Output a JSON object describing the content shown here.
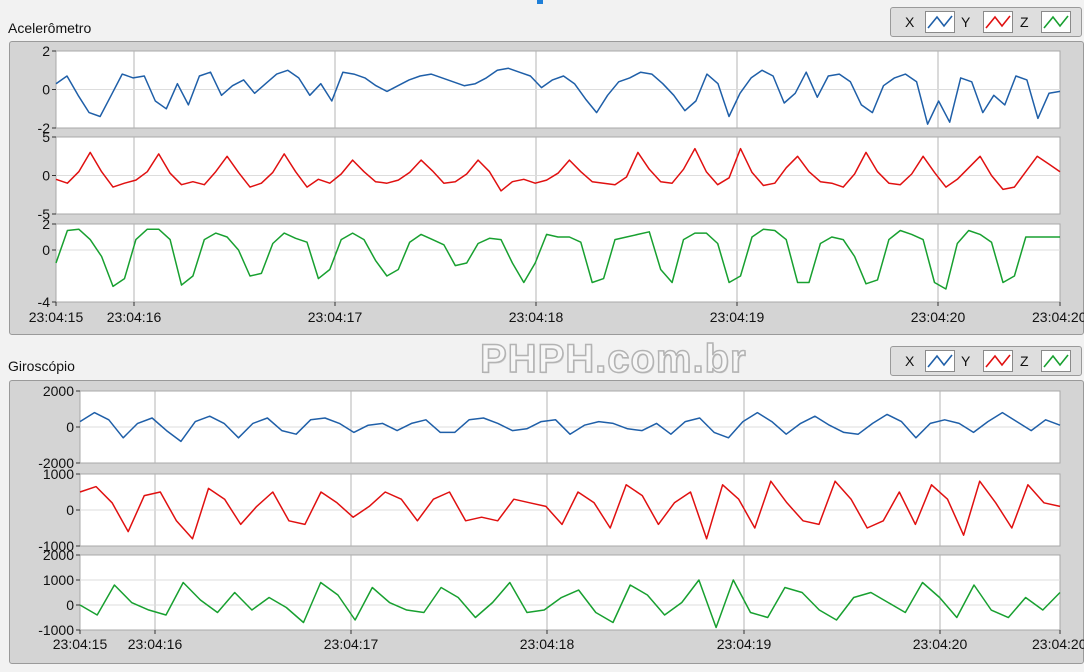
{
  "watermark": "PHPH.com.br",
  "chart_data": [
    {
      "type": "line",
      "title": "Acelerômetro",
      "x_tick_labels": [
        "23:04:15",
        "23:04:16",
        "23:04:17",
        "23:04:18",
        "23:04:19",
        "23:04:20",
        "23:04:20"
      ],
      "grid": true,
      "legend": {
        "placement": "top-right",
        "entries": [
          "X",
          "Y",
          "Z"
        ]
      },
      "series": [
        {
          "name": "X",
          "color": "#1f5fa8",
          "ylim": [
            -2,
            2
          ],
          "y_ticks": [
            "2",
            "0",
            "-2"
          ],
          "values": [
            0.3,
            0.7,
            -0.3,
            -1.2,
            -1.4,
            -0.3,
            0.8,
            0.6,
            0.7,
            -0.6,
            -1.0,
            0.3,
            -0.8,
            0.7,
            0.9,
            -0.3,
            0.2,
            0.5,
            -0.2,
            0.3,
            0.8,
            1.0,
            0.6,
            -0.3,
            0.3,
            -0.6,
            0.9,
            0.8,
            0.6,
            0.2,
            -0.1,
            0.2,
            0.5,
            0.7,
            0.8,
            0.6,
            0.4,
            0.2,
            0.3,
            0.6,
            1.0,
            1.1,
            0.9,
            0.7,
            0.1,
            0.5,
            0.7,
            0.3,
            -0.5,
            -1.2,
            -0.3,
            0.4,
            0.6,
            0.9,
            0.8,
            0.3,
            -0.3,
            -1.1,
            -0.6,
            0.8,
            0.3,
            -1.4,
            -0.2,
            0.6,
            1.0,
            0.7,
            -0.7,
            -0.2,
            0.9,
            -0.4,
            0.7,
            0.8,
            0.4,
            -0.8,
            -1.2,
            0.2,
            0.6,
            0.8,
            0.4,
            -1.8,
            -0.6,
            -1.7,
            0.6,
            0.4,
            -1.2,
            -0.3,
            -0.8,
            0.7,
            0.5,
            -1.5,
            -0.2,
            -0.1
          ]
        },
        {
          "name": "Y",
          "color": "#e01010",
          "ylim": [
            -5,
            5
          ],
          "y_ticks": [
            "5",
            "0",
            "-5"
          ],
          "values": [
            -0.5,
            -1.0,
            0.5,
            3.0,
            0.5,
            -1.5,
            -1.0,
            -0.6,
            0.5,
            2.8,
            0.3,
            -1.2,
            -0.8,
            -1.2,
            0.5,
            2.5,
            0.4,
            -1.5,
            -1.0,
            0.4,
            2.8,
            0.5,
            -1.5,
            -0.5,
            -1.0,
            0.2,
            2.0,
            0.5,
            -0.8,
            -1.0,
            -0.6,
            0.4,
            2.0,
            0.6,
            -1.0,
            -0.8,
            0.2,
            2.0,
            0.5,
            -2.0,
            -0.8,
            -0.5,
            -1.0,
            -0.6,
            0.3,
            2.0,
            0.5,
            -0.8,
            -1.0,
            -1.2,
            -0.2,
            3.0,
            0.8,
            -0.8,
            -1.0,
            0.8,
            3.5,
            0.5,
            -1.2,
            -0.3,
            3.5,
            0.4,
            -1.3,
            -1.0,
            1.0,
            2.5,
            0.5,
            -0.8,
            -1.0,
            -1.5,
            0.2,
            3.0,
            0.5,
            -1.0,
            -1.2,
            0.2,
            2.5,
            0.4,
            -1.5,
            -0.5,
            1.0,
            2.5,
            0.0,
            -1.8,
            -1.5,
            0.5,
            2.5,
            1.5,
            0.5
          ]
        },
        {
          "name": "Z",
          "color": "#18a030",
          "ylim": [
            -4,
            2
          ],
          "y_ticks": [
            "2",
            "0",
            "-4"
          ],
          "values": [
            -1.0,
            1.5,
            1.6,
            0.8,
            -0.5,
            -2.8,
            -2.2,
            0.8,
            1.6,
            1.6,
            0.8,
            -2.7,
            -2.0,
            0.8,
            1.3,
            1.0,
            0.0,
            -2.0,
            -1.8,
            0.5,
            1.3,
            0.9,
            0.6,
            -2.2,
            -1.5,
            0.8,
            1.3,
            0.8,
            -0.8,
            -2.0,
            -1.5,
            0.6,
            1.2,
            0.8,
            0.4,
            -1.2,
            -1.0,
            0.5,
            0.9,
            0.8,
            -1.0,
            -2.5,
            -1.0,
            1.2,
            1.0,
            1.0,
            0.6,
            -2.5,
            -2.2,
            0.8,
            1.0,
            1.2,
            1.4,
            -1.5,
            -2.5,
            0.8,
            1.3,
            1.3,
            0.5,
            -2.5,
            -2.0,
            1.0,
            1.6,
            1.5,
            0.8,
            -2.5,
            -2.5,
            0.5,
            1.0,
            0.8,
            -0.5,
            -2.6,
            -2.3,
            0.8,
            1.5,
            1.2,
            0.8,
            -2.5,
            -3.0,
            0.5,
            1.5,
            1.2,
            0.6,
            -2.5,
            -2.0,
            1.0,
            1.0,
            1.0,
            1.0
          ]
        }
      ]
    },
    {
      "type": "line",
      "title": "Giroscópio",
      "x_tick_labels": [
        "23:04:15",
        "23:04:16",
        "23:04:17",
        "23:04:18",
        "23:04:19",
        "23:04:20",
        "23:04:20"
      ],
      "grid": true,
      "legend": {
        "placement": "top-right",
        "entries": [
          "X",
          "Y",
          "Z"
        ]
      },
      "series": [
        {
          "name": "X",
          "color": "#1f5fa8",
          "ylim": [
            -2000,
            2000
          ],
          "y_ticks": [
            "2000",
            "0",
            "-2000"
          ],
          "values": [
            300,
            800,
            400,
            -600,
            200,
            500,
            -200,
            -800,
            300,
            600,
            200,
            -600,
            200,
            500,
            -200,
            -400,
            400,
            500,
            200,
            -300,
            100,
            200,
            -200,
            200,
            400,
            -300,
            -300,
            400,
            500,
            200,
            -200,
            -100,
            300,
            400,
            -400,
            100,
            300,
            200,
            -100,
            -200,
            200,
            -400,
            300,
            500,
            -300,
            -600,
            300,
            800,
            300,
            -400,
            200,
            600,
            100,
            -300,
            -400,
            200,
            700,
            300,
            -600,
            200,
            400,
            200,
            -300,
            300,
            800,
            300,
            -200,
            400,
            100
          ]
        },
        {
          "name": "Y",
          "color": "#e01010",
          "ylim": [
            -1000,
            1000
          ],
          "y_ticks": [
            "1000",
            "0",
            "-1000"
          ],
          "values": [
            500,
            650,
            200,
            -600,
            400,
            500,
            -300,
            -800,
            600,
            300,
            -400,
            100,
            500,
            -300,
            -400,
            500,
            200,
            -200,
            100,
            500,
            300,
            -300,
            300,
            500,
            -300,
            -200,
            -300,
            300,
            200,
            100,
            -400,
            500,
            200,
            -500,
            700,
            400,
            -400,
            200,
            500,
            -800,
            700,
            300,
            -500,
            800,
            200,
            -300,
            -400,
            800,
            300,
            -500,
            -300,
            500,
            -400,
            700,
            300,
            -700,
            800,
            200,
            -500,
            700,
            200,
            100
          ]
        },
        {
          "name": "Z",
          "color": "#18a030",
          "ylim": [
            -1000,
            2000
          ],
          "y_ticks": [
            "2000",
            "1000",
            "0",
            "-1000"
          ],
          "values": [
            0,
            -400,
            800,
            100,
            -200,
            -400,
            900,
            200,
            -300,
            500,
            -200,
            300,
            -100,
            -700,
            900,
            400,
            -600,
            700,
            100,
            -200,
            -300,
            700,
            300,
            -500,
            100,
            900,
            -300,
            -200,
            300,
            600,
            -300,
            -700,
            800,
            400,
            -400,
            100,
            1000,
            -900,
            1000,
            -300,
            -500,
            700,
            500,
            -200,
            -600,
            300,
            500,
            100,
            -300,
            900,
            300,
            -500,
            800,
            -200,
            -500,
            300,
            -200,
            500
          ]
        }
      ]
    }
  ]
}
